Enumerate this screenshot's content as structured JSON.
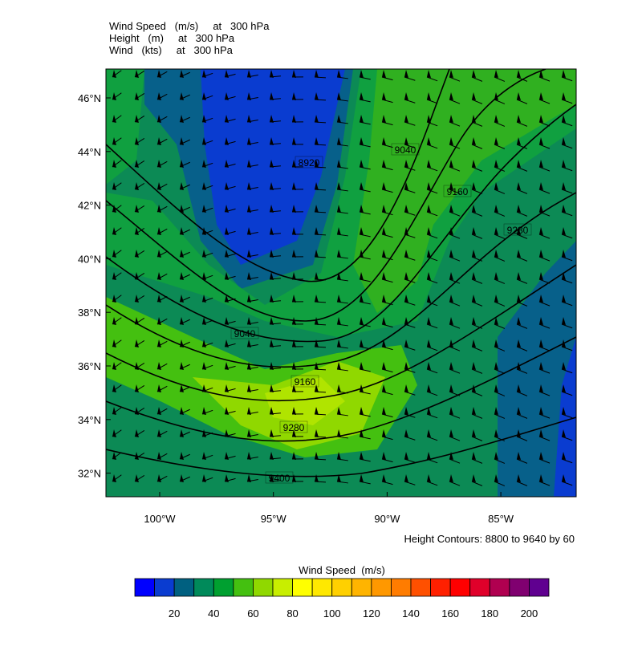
{
  "titles": [
    "Wind Speed   (m/s)     at   300 hPa",
    "Height   (m)     at   300 hPa",
    "Wind   (kts)     at   300 hPa"
  ],
  "lat_labels": [
    "46°N",
    "44°N",
    "42°N",
    "40°N",
    "38°N",
    "36°N",
    "34°N",
    "32°N"
  ],
  "lon_labels": [
    "100°W",
    "95°W",
    "90°W",
    "85°W"
  ],
  "contour_labels": [
    "8920",
    "9040",
    "9160",
    "9280",
    "9040",
    "9160",
    "9280",
    "9400"
  ],
  "footnote": "Height Contours: 8800 to 9640 by 60",
  "colorbar": {
    "title": "Wind Speed  (m/s)",
    "colors": [
      "#0000ff",
      "#0a3cd0",
      "#006080",
      "#008a5a",
      "#00a030",
      "#44c010",
      "#90d800",
      "#c8ee00",
      "#ffff00",
      "#ffe800",
      "#ffd000",
      "#ffb400",
      "#ff9800",
      "#ff7c00",
      "#ff5000",
      "#ff2000",
      "#ff0000",
      "#e0002a",
      "#b00050",
      "#800070",
      "#600090"
    ],
    "labels": [
      20,
      40,
      60,
      80,
      100,
      120,
      140,
      160,
      180,
      200
    ]
  }
}
